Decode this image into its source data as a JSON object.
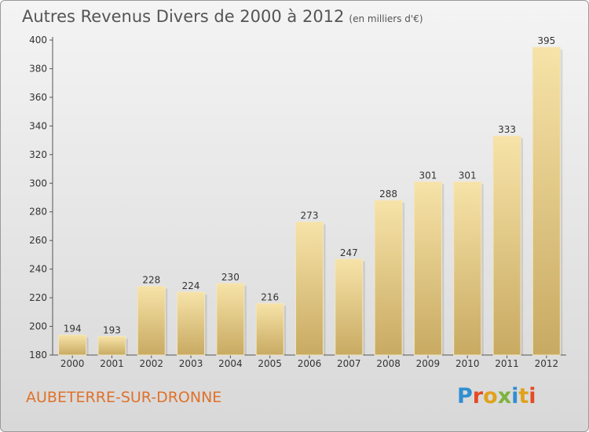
{
  "header": {
    "title": "Autres Revenus Divers de 2000 à 2012",
    "subtitle": "(en milliers d'€)"
  },
  "footer": {
    "commune": "AUBETERRE-SUR-DRONNE",
    "brand": "Proxiti"
  },
  "colors": {
    "bar_top": "#f7e3a8",
    "bar_bottom": "#c8aa62",
    "brand_letters": [
      "#2f8fd1",
      "#e34b24",
      "#e0a21c",
      "#7cb33d",
      "#2f8fd1",
      "#e0a21c",
      "#e34b24"
    ]
  },
  "chart_data": {
    "type": "bar",
    "categories": [
      "2000",
      "2001",
      "2002",
      "2003",
      "2004",
      "2005",
      "2006",
      "2007",
      "2008",
      "2009",
      "2010",
      "2011",
      "2012"
    ],
    "values": [
      194,
      193,
      228,
      224,
      230,
      216,
      273,
      247,
      288,
      301,
      301,
      333,
      395
    ],
    "title": "Autres Revenus Divers de 2000 à 2012",
    "subtitle": "(en milliers d'€)",
    "xlabel": "",
    "ylabel": "",
    "ylim": [
      180,
      400
    ],
    "yticks": [
      180,
      200,
      220,
      240,
      260,
      280,
      300,
      320,
      340,
      360,
      380,
      400
    ],
    "grid": false,
    "data_labels": true
  }
}
